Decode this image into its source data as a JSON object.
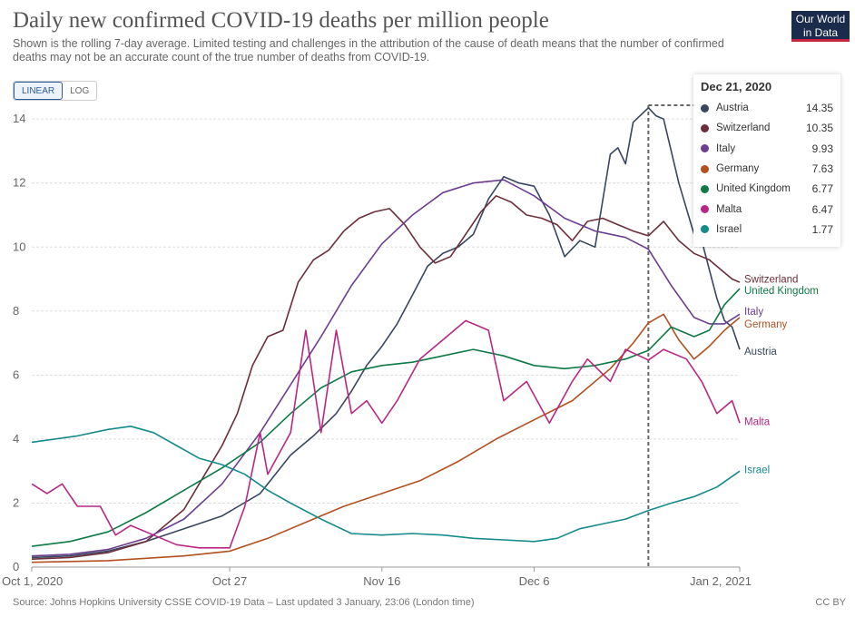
{
  "header": {
    "title": "Daily new confirmed COVID-19 deaths per million people",
    "subtitle": "Shown is the rolling 7-day average. Limited testing and challenges in the attribution of the cause of death means that the number of confirmed deaths may not be an accurate count of the true number of deaths from COVID-19.",
    "logo_line1": "Our World",
    "logo_line2": "in Data"
  },
  "controls": {
    "linear_label": "LINEAR",
    "log_label": "LOG",
    "selected": "LINEAR"
  },
  "footer": {
    "source": "Source: Johns Hopkins University CSSE COVID-19 Data – Last updated 3 January, 23:06 (London time)",
    "license": "CC BY"
  },
  "tooltip": {
    "date": "Dec 21, 2020",
    "rows": [
      {
        "name": "Austria",
        "value": "14.35",
        "color": "#38475f"
      },
      {
        "name": "Switzerland",
        "value": "10.35",
        "color": "#6b2e3a"
      },
      {
        "name": "Italy",
        "value": "9.93",
        "color": "#6c3e8f"
      },
      {
        "name": "Germany",
        "value": "7.63",
        "color": "#b2501f"
      },
      {
        "name": "United Kingdom",
        "value": "6.77",
        "color": "#0d7a46"
      },
      {
        "name": "Malta",
        "value": "6.47",
        "color": "#b82883"
      },
      {
        "name": "Israel",
        "value": "1.77",
        "color": "#16898a"
      }
    ]
  },
  "chart_data": {
    "type": "line",
    "xlabel": "",
    "ylabel": "",
    "x_start": "2020-10-01",
    "x_end": "2021-01-02",
    "x_ticks": [
      "Oct 1, 2020",
      "Oct 27",
      "Nov 16",
      "Dec 6",
      "Jan 2, 2021"
    ],
    "x_tick_dates": [
      "2020-10-01",
      "2020-10-27",
      "2020-11-16",
      "2020-12-06",
      "2021-01-02"
    ],
    "y_ticks": [
      0,
      2,
      4,
      6,
      8,
      10,
      12,
      14
    ],
    "ylim": [
      0,
      14.6
    ],
    "grid": "horizontal-dashed",
    "highlight_date": "2020-12-21",
    "series": [
      {
        "name": "Austria",
        "color": "#38475f",
        "points": [
          [
            "2020-10-01",
            0.3
          ],
          [
            "2020-10-06",
            0.35
          ],
          [
            "2020-10-11",
            0.5
          ],
          [
            "2020-10-16",
            0.8
          ],
          [
            "2020-10-21",
            1.2
          ],
          [
            "2020-10-26",
            1.6
          ],
          [
            "2020-10-31",
            2.3
          ],
          [
            "2020-11-04",
            3.5
          ],
          [
            "2020-11-07",
            4.1
          ],
          [
            "2020-11-10",
            4.8
          ],
          [
            "2020-11-12",
            5.5
          ],
          [
            "2020-11-14",
            6.3
          ],
          [
            "2020-11-16",
            6.9
          ],
          [
            "2020-11-18",
            7.6
          ],
          [
            "2020-11-20",
            8.5
          ],
          [
            "2020-11-22",
            9.4
          ],
          [
            "2020-11-24",
            9.8
          ],
          [
            "2020-11-26",
            10.0
          ],
          [
            "2020-11-28",
            10.4
          ],
          [
            "2020-11-30",
            11.5
          ],
          [
            "2020-12-02",
            12.2
          ],
          [
            "2020-12-04",
            12.0
          ],
          [
            "2020-12-06",
            11.9
          ],
          [
            "2020-12-08",
            11.0
          ],
          [
            "2020-12-10",
            9.7
          ],
          [
            "2020-12-12",
            10.2
          ],
          [
            "2020-12-14",
            10.0
          ],
          [
            "2020-12-16",
            12.9
          ],
          [
            "2020-12-17",
            13.1
          ],
          [
            "2020-12-18",
            12.6
          ],
          [
            "2020-12-19",
            13.9
          ],
          [
            "2020-12-21",
            14.35
          ],
          [
            "2020-12-22",
            14.1
          ],
          [
            "2020-12-23",
            14.0
          ],
          [
            "2020-12-25",
            12.0
          ],
          [
            "2020-12-27",
            10.4
          ],
          [
            "2020-12-28",
            10.2
          ],
          [
            "2020-12-30",
            8.4
          ],
          [
            "2020-12-31",
            7.7
          ],
          [
            "2021-01-01",
            7.5
          ],
          [
            "2021-01-02",
            6.8
          ]
        ],
        "end_label": "Austria",
        "end_label_y": 6.75
      },
      {
        "name": "Switzerland",
        "color": "#6b2e3a",
        "points": [
          [
            "2020-10-01",
            0.25
          ],
          [
            "2020-10-06",
            0.3
          ],
          [
            "2020-10-11",
            0.45
          ],
          [
            "2020-10-16",
            0.8
          ],
          [
            "2020-10-21",
            1.8
          ],
          [
            "2020-10-24",
            3.0
          ],
          [
            "2020-10-26",
            3.8
          ],
          [
            "2020-10-28",
            4.8
          ],
          [
            "2020-10-30",
            6.3
          ],
          [
            "2020-11-01",
            7.2
          ],
          [
            "2020-11-03",
            7.4
          ],
          [
            "2020-11-05",
            8.9
          ],
          [
            "2020-11-07",
            9.6
          ],
          [
            "2020-11-09",
            9.9
          ],
          [
            "2020-11-11",
            10.5
          ],
          [
            "2020-11-13",
            10.9
          ],
          [
            "2020-11-15",
            11.1
          ],
          [
            "2020-11-17",
            11.2
          ],
          [
            "2020-11-19",
            10.7
          ],
          [
            "2020-11-21",
            10.0
          ],
          [
            "2020-11-23",
            9.5
          ],
          [
            "2020-11-25",
            9.7
          ],
          [
            "2020-11-27",
            10.4
          ],
          [
            "2020-11-29",
            11.1
          ],
          [
            "2020-12-01",
            11.6
          ],
          [
            "2020-12-03",
            11.4
          ],
          [
            "2020-12-05",
            11.0
          ],
          [
            "2020-12-07",
            10.9
          ],
          [
            "2020-12-09",
            10.7
          ],
          [
            "2020-12-11",
            10.2
          ],
          [
            "2020-12-13",
            10.8
          ],
          [
            "2020-12-15",
            10.9
          ],
          [
            "2020-12-17",
            10.7
          ],
          [
            "2020-12-19",
            10.5
          ],
          [
            "2020-12-21",
            10.35
          ],
          [
            "2020-12-23",
            10.8
          ],
          [
            "2020-12-25",
            10.2
          ],
          [
            "2020-12-27",
            9.8
          ],
          [
            "2020-12-29",
            9.6
          ],
          [
            "2020-12-31",
            9.2
          ],
          [
            "2021-01-01",
            9.0
          ],
          [
            "2021-01-02",
            8.9
          ]
        ],
        "end_label": "Switzerland",
        "end_label_y": 9.0
      },
      {
        "name": "Italy",
        "color": "#6c3e8f",
        "points": [
          [
            "2020-10-01",
            0.35
          ],
          [
            "2020-10-06",
            0.4
          ],
          [
            "2020-10-11",
            0.55
          ],
          [
            "2020-10-16",
            0.9
          ],
          [
            "2020-10-21",
            1.5
          ],
          [
            "2020-10-26",
            2.6
          ],
          [
            "2020-10-31",
            4.2
          ],
          [
            "2020-11-04",
            5.7
          ],
          [
            "2020-11-08",
            7.2
          ],
          [
            "2020-11-12",
            8.8
          ],
          [
            "2020-11-16",
            10.1
          ],
          [
            "2020-11-20",
            11.0
          ],
          [
            "2020-11-24",
            11.7
          ],
          [
            "2020-11-28",
            12.0
          ],
          [
            "2020-12-02",
            12.1
          ],
          [
            "2020-12-06",
            11.6
          ],
          [
            "2020-12-10",
            10.9
          ],
          [
            "2020-12-14",
            10.5
          ],
          [
            "2020-12-18",
            10.3
          ],
          [
            "2020-12-21",
            9.93
          ],
          [
            "2020-12-24",
            8.8
          ],
          [
            "2020-12-27",
            7.8
          ],
          [
            "2020-12-29",
            7.6
          ],
          [
            "2020-12-31",
            7.6
          ],
          [
            "2021-01-02",
            7.9
          ]
        ],
        "end_label": "Italy",
        "end_label_y": 8.0
      },
      {
        "name": "Germany",
        "color": "#b2501f",
        "points": [
          [
            "2020-10-01",
            0.15
          ],
          [
            "2020-10-11",
            0.2
          ],
          [
            "2020-10-21",
            0.35
          ],
          [
            "2020-10-27",
            0.5
          ],
          [
            "2020-11-01",
            0.9
          ],
          [
            "2020-11-06",
            1.4
          ],
          [
            "2020-11-11",
            1.9
          ],
          [
            "2020-11-16",
            2.3
          ],
          [
            "2020-11-21",
            2.7
          ],
          [
            "2020-11-26",
            3.3
          ],
          [
            "2020-12-01",
            4.0
          ],
          [
            "2020-12-06",
            4.6
          ],
          [
            "2020-12-11",
            5.2
          ],
          [
            "2020-12-16",
            6.2
          ],
          [
            "2020-12-19",
            7.0
          ],
          [
            "2020-12-21",
            7.63
          ],
          [
            "2020-12-23",
            7.9
          ],
          [
            "2020-12-25",
            7.1
          ],
          [
            "2020-12-27",
            6.5
          ],
          [
            "2020-12-29",
            6.9
          ],
          [
            "2020-12-31",
            7.4
          ],
          [
            "2021-01-02",
            7.8
          ]
        ],
        "end_label": "Germany",
        "end_label_y": 7.6
      },
      {
        "name": "United Kingdom",
        "color": "#0d7a46",
        "points": [
          [
            "2020-10-01",
            0.65
          ],
          [
            "2020-10-06",
            0.8
          ],
          [
            "2020-10-11",
            1.1
          ],
          [
            "2020-10-16",
            1.7
          ],
          [
            "2020-10-21",
            2.4
          ],
          [
            "2020-10-26",
            3.1
          ],
          [
            "2020-10-31",
            3.9
          ],
          [
            "2020-11-04",
            4.8
          ],
          [
            "2020-11-08",
            5.6
          ],
          [
            "2020-11-12",
            6.1
          ],
          [
            "2020-11-16",
            6.3
          ],
          [
            "2020-11-20",
            6.4
          ],
          [
            "2020-11-24",
            6.6
          ],
          [
            "2020-11-28",
            6.8
          ],
          [
            "2020-12-02",
            6.6
          ],
          [
            "2020-12-06",
            6.3
          ],
          [
            "2020-12-10",
            6.2
          ],
          [
            "2020-12-14",
            6.3
          ],
          [
            "2020-12-18",
            6.5
          ],
          [
            "2020-12-21",
            6.77
          ],
          [
            "2020-12-24",
            7.5
          ],
          [
            "2020-12-27",
            7.2
          ],
          [
            "2020-12-29",
            7.4
          ],
          [
            "2020-12-31",
            8.2
          ],
          [
            "2021-01-02",
            8.7
          ]
        ],
        "end_label": "United Kingdom",
        "end_label_y": 8.65
      },
      {
        "name": "Malta",
        "color": "#b82883",
        "points": [
          [
            "2020-10-01",
            2.6
          ],
          [
            "2020-10-03",
            2.3
          ],
          [
            "2020-10-05",
            2.6
          ],
          [
            "2020-10-07",
            1.9
          ],
          [
            "2020-10-10",
            1.9
          ],
          [
            "2020-10-12",
            1.0
          ],
          [
            "2020-10-14",
            1.3
          ],
          [
            "2020-10-17",
            1.0
          ],
          [
            "2020-10-20",
            0.7
          ],
          [
            "2020-10-23",
            0.6
          ],
          [
            "2020-10-27",
            0.6
          ],
          [
            "2020-10-29",
            1.9
          ],
          [
            "2020-10-31",
            4.2
          ],
          [
            "2020-11-01",
            2.9
          ],
          [
            "2020-11-04",
            4.2
          ],
          [
            "2020-11-06",
            7.4
          ],
          [
            "2020-11-08",
            4.2
          ],
          [
            "2020-11-10",
            7.4
          ],
          [
            "2020-11-12",
            4.8
          ],
          [
            "2020-11-14",
            5.2
          ],
          [
            "2020-11-16",
            4.5
          ],
          [
            "2020-11-18",
            5.2
          ],
          [
            "2020-11-21",
            6.5
          ],
          [
            "2020-11-24",
            7.1
          ],
          [
            "2020-11-27",
            7.7
          ],
          [
            "2020-11-30",
            7.4
          ],
          [
            "2020-12-02",
            5.2
          ],
          [
            "2020-12-05",
            5.8
          ],
          [
            "2020-12-08",
            4.5
          ],
          [
            "2020-12-11",
            5.8
          ],
          [
            "2020-12-13",
            6.5
          ],
          [
            "2020-12-16",
            5.8
          ],
          [
            "2020-12-18",
            6.8
          ],
          [
            "2020-12-21",
            6.47
          ],
          [
            "2020-12-23",
            6.8
          ],
          [
            "2020-12-26",
            6.5
          ],
          [
            "2020-12-28",
            5.8
          ],
          [
            "2020-12-30",
            4.8
          ],
          [
            "2021-01-01",
            5.2
          ],
          [
            "2021-01-02",
            4.5
          ]
        ],
        "end_label": "Malta",
        "end_label_y": 4.55
      },
      {
        "name": "Israel",
        "color": "#16898a",
        "points": [
          [
            "2020-10-01",
            3.9
          ],
          [
            "2020-10-04",
            4.0
          ],
          [
            "2020-10-07",
            4.1
          ],
          [
            "2020-10-11",
            4.3
          ],
          [
            "2020-10-14",
            4.4
          ],
          [
            "2020-10-17",
            4.2
          ],
          [
            "2020-10-20",
            3.8
          ],
          [
            "2020-10-23",
            3.4
          ],
          [
            "2020-10-26",
            3.2
          ],
          [
            "2020-10-29",
            2.9
          ],
          [
            "2020-11-01",
            2.4
          ],
          [
            "2020-11-04",
            2.0
          ],
          [
            "2020-11-08",
            1.5
          ],
          [
            "2020-11-12",
            1.05
          ],
          [
            "2020-11-16",
            1.0
          ],
          [
            "2020-11-20",
            1.05
          ],
          [
            "2020-11-24",
            1.0
          ],
          [
            "2020-11-28",
            0.9
          ],
          [
            "2020-12-02",
            0.85
          ],
          [
            "2020-12-06",
            0.8
          ],
          [
            "2020-12-09",
            0.9
          ],
          [
            "2020-12-12",
            1.2
          ],
          [
            "2020-12-15",
            1.35
          ],
          [
            "2020-12-18",
            1.5
          ],
          [
            "2020-12-21",
            1.77
          ],
          [
            "2020-12-24",
            2.0
          ],
          [
            "2020-12-27",
            2.2
          ],
          [
            "2020-12-30",
            2.5
          ],
          [
            "2021-01-02",
            3.0
          ]
        ],
        "end_label": "Israel",
        "end_label_y": 3.05
      }
    ]
  }
}
